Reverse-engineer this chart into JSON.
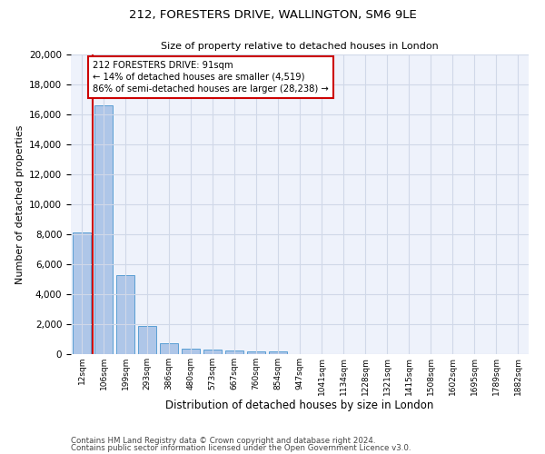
{
  "title1": "212, FORESTERS DRIVE, WALLINGTON, SM6 9LE",
  "title2": "Size of property relative to detached houses in London",
  "xlabel": "Distribution of detached houses by size in London",
  "ylabel": "Number of detached properties",
  "categories": [
    "12sqm",
    "106sqm",
    "199sqm",
    "293sqm",
    "386sqm",
    "480sqm",
    "573sqm",
    "667sqm",
    "760sqm",
    "854sqm",
    "947sqm",
    "1041sqm",
    "1134sqm",
    "1228sqm",
    "1321sqm",
    "1415sqm",
    "1508sqm",
    "1602sqm",
    "1695sqm",
    "1789sqm",
    "1882sqm"
  ],
  "values": [
    8100,
    16600,
    5300,
    1850,
    700,
    350,
    280,
    230,
    200,
    170,
    0,
    0,
    0,
    0,
    0,
    0,
    0,
    0,
    0,
    0,
    0
  ],
  "bar_color": "#aec6e8",
  "bar_edge_color": "#5a9fd4",
  "annotation_text": "212 FORESTERS DRIVE: 91sqm\n← 14% of detached houses are smaller (4,519)\n86% of semi-detached houses are larger (28,238) →",
  "annotation_box_color": "#ffffff",
  "annotation_box_edge": "#cc0000",
  "vline_color": "#cc0000",
  "ylim": [
    0,
    20000
  ],
  "yticks": [
    0,
    2000,
    4000,
    6000,
    8000,
    10000,
    12000,
    14000,
    16000,
    18000,
    20000
  ],
  "grid_color": "#d0d8e8",
  "bg_color": "#eef2fb",
  "footer1": "Contains HM Land Registry data © Crown copyright and database right 2024.",
  "footer2": "Contains public sector information licensed under the Open Government Licence v3.0."
}
